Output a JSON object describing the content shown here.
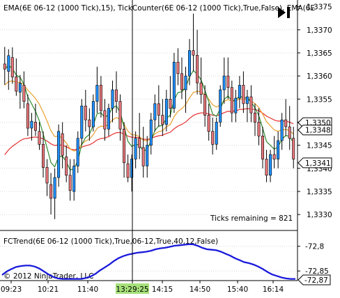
{
  "chart_data": [
    {
      "type": "candlestick",
      "panel": "price",
      "indicator_label": "EMA(6E 06-12 (1000 Tick),15), TickCounter(6E 06-12 (1000 Tick),True,False), EMA(6E",
      "y_ticks": [
        "1,3375",
        "1,3370",
        "1,3365",
        "1,3360",
        "1,3355",
        "1,3350",
        "1,3345",
        "1,3340",
        "1,3335",
        "1,3330"
      ],
      "ylim": [
        1.3327,
        1.3376
      ],
      "price_markers": [
        {
          "label": "1,3350",
          "value": 1.33499
        },
        {
          "label": "1,3348",
          "value": 1.33483
        },
        {
          "label": "1,3341",
          "value": 1.33412
        }
      ],
      "annotation": "Ticks remaining = 821",
      "colors": {
        "up": "#1e90ff",
        "down": "#e8767a",
        "ema_green": "#2e8b2e",
        "ema_orange": "#e8a030",
        "ema_red": "#e83030"
      },
      "candles": [
        [
          1.33626,
          1.33663,
          1.33581,
          1.33615
        ],
        [
          1.3361,
          1.33658,
          1.3357,
          1.33644
        ],
        [
          1.3364,
          1.33662,
          1.33583,
          1.33598
        ],
        [
          1.33598,
          1.33638,
          1.33557,
          1.33567
        ],
        [
          1.33565,
          1.33602,
          1.33529,
          1.33584
        ],
        [
          1.3358,
          1.3361,
          1.3353,
          1.33545
        ],
        [
          1.3354,
          1.3356,
          1.3347,
          1.33487
        ],
        [
          1.33487,
          1.3352,
          1.3346,
          1.33502
        ],
        [
          1.335,
          1.3354,
          1.3347,
          1.33482
        ],
        [
          1.3348,
          1.335,
          1.3344,
          1.33452
        ],
        [
          1.33452,
          1.3348,
          1.3338,
          1.33402
        ],
        [
          1.33402,
          1.3342,
          1.3334,
          1.33368
        ],
        [
          1.33365,
          1.3339,
          1.333,
          1.33335
        ],
        [
          1.33335,
          1.334,
          1.3329,
          1.3338
        ],
        [
          1.3338,
          1.33495,
          1.3336,
          1.3348
        ],
        [
          1.33475,
          1.335,
          1.334,
          1.33428
        ],
        [
          1.33425,
          1.3345,
          1.3337,
          1.33385
        ],
        [
          1.33385,
          1.3342,
          1.3333,
          1.33352
        ],
        [
          1.3335,
          1.3342,
          1.3333,
          1.33405
        ],
        [
          1.33405,
          1.3348,
          1.3339,
          1.33465
        ],
        [
          1.33465,
          1.3355,
          1.3345,
          1.33535
        ],
        [
          1.33535,
          1.3357,
          1.3348,
          1.33505
        ],
        [
          1.33505,
          1.3353,
          1.3346,
          1.3349
        ],
        [
          1.3349,
          1.3356,
          1.3348,
          1.33545
        ],
        [
          1.33545,
          1.3362,
          1.3352,
          1.3358
        ],
        [
          1.3358,
          1.336,
          1.3351,
          1.33525
        ],
        [
          1.33525,
          1.3355,
          1.3346,
          1.33485
        ],
        [
          1.33485,
          1.3354,
          1.3347,
          1.3353
        ],
        [
          1.3353,
          1.3359,
          1.335,
          1.3357
        ],
        [
          1.3357,
          1.3361,
          1.3352,
          1.33545
        ],
        [
          1.33545,
          1.3356,
          1.3346,
          1.33485
        ],
        [
          1.33485,
          1.335,
          1.3338,
          1.33412
        ],
        [
          1.3341,
          1.3343,
          1.3337,
          1.3338
        ],
        [
          1.3338,
          1.3343,
          1.3335,
          1.3342
        ],
        [
          1.3342,
          1.3348,
          1.334,
          1.33465
        ],
        [
          1.33465,
          1.3352,
          1.3342,
          1.33445
        ],
        [
          1.33445,
          1.3349,
          1.3338,
          1.33405
        ],
        [
          1.33405,
          1.3347,
          1.3338,
          1.3345
        ],
        [
          1.3345,
          1.3352,
          1.3343,
          1.33505
        ],
        [
          1.33505,
          1.3356,
          1.3348,
          1.3354
        ],
        [
          1.3354,
          1.3358,
          1.3349,
          1.33515
        ],
        [
          1.33515,
          1.3355,
          1.3347,
          1.33495
        ],
        [
          1.33495,
          1.3357,
          1.3348,
          1.3355
        ],
        [
          1.3355,
          1.336,
          1.3351,
          1.3353
        ],
        [
          1.3353,
          1.3365,
          1.3352,
          1.3363
        ],
        [
          1.3363,
          1.3366,
          1.3358,
          1.33605
        ],
        [
          1.33605,
          1.3364,
          1.3355,
          1.3357
        ],
        [
          1.3357,
          1.3362,
          1.3352,
          1.336
        ],
        [
          1.336,
          1.3368,
          1.3358,
          1.33655
        ],
        [
          1.33655,
          1.33735,
          1.3361,
          1.33645
        ],
        [
          1.33645,
          1.337,
          1.3356,
          1.33585
        ],
        [
          1.33585,
          1.3364,
          1.3354,
          1.3356
        ],
        [
          1.3356,
          1.3358,
          1.3349,
          1.33515
        ],
        [
          1.33515,
          1.3354,
          1.3346,
          1.3348
        ],
        [
          1.3348,
          1.3351,
          1.3343,
          1.33452
        ],
        [
          1.33452,
          1.3351,
          1.3344,
          1.335
        ],
        [
          1.335,
          1.3358,
          1.3349,
          1.3357
        ],
        [
          1.3357,
          1.3364,
          1.3354,
          1.336
        ],
        [
          1.336,
          1.3364,
          1.3355,
          1.33575
        ],
        [
          1.33575,
          1.3359,
          1.335,
          1.3352
        ],
        [
          1.3352,
          1.3357,
          1.335,
          1.33552
        ],
        [
          1.33552,
          1.336,
          1.3353,
          1.3358
        ],
        [
          1.3358,
          1.3361,
          1.3352,
          1.3354
        ],
        [
          1.3354,
          1.3357,
          1.335,
          1.33555
        ],
        [
          1.33555,
          1.3358,
          1.335,
          1.3352
        ],
        [
          1.3352,
          1.3354,
          1.3347,
          1.335
        ],
        [
          1.335,
          1.3353,
          1.3345,
          1.3347
        ],
        [
          1.3347,
          1.3349,
          1.334,
          1.3342
        ],
        [
          1.3342,
          1.3344,
          1.3337,
          1.33385
        ],
        [
          1.33385,
          1.3344,
          1.3337,
          1.3343
        ],
        [
          1.3343,
          1.3347,
          1.334,
          1.3342
        ],
        [
          1.3342,
          1.3348,
          1.334,
          1.3346
        ],
        [
          1.3346,
          1.3352,
          1.3344,
          1.33505
        ],
        [
          1.33505,
          1.3355,
          1.3347,
          1.3349
        ],
        [
          1.3349,
          1.33535,
          1.3344,
          1.33465
        ],
        [
          1.33465,
          1.3349,
          1.334,
          1.3342
        ]
      ]
    },
    {
      "type": "line",
      "panel": "indicator",
      "indicator_label": "FCTrend(6E 06-12 (1000 Tick),True,06-12,True,40,12,False)",
      "y_ticks": [
        "-72,8",
        "-72,85"
      ],
      "ylim": [
        -72.868,
        -72.775
      ],
      "marker": {
        "label": "-72,87",
        "value": -72.868
      },
      "copyright": "© 2012 NinjaTrader, LLC",
      "color": "#1a1adc",
      "values": [
        -72.858,
        -72.851,
        -72.846,
        -72.842,
        -72.84,
        -72.839,
        -72.839,
        -72.841,
        -72.845,
        -72.851,
        -72.857,
        -72.862,
        -72.865,
        -72.866,
        -72.866,
        -72.866,
        -72.866,
        -72.866,
        -72.864,
        -72.861,
        -72.856,
        -72.849,
        -72.843,
        -72.837,
        -72.83,
        -72.824,
        -72.82,
        -72.817,
        -72.815,
        -72.813,
        -72.812,
        -72.811,
        -72.809,
        -72.806,
        -72.804,
        -72.803,
        -72.801,
        -72.799,
        -72.798,
        -72.797,
        -72.796,
        -72.796,
        -72.799,
        -72.803,
        -72.806,
        -72.807,
        -72.808,
        -72.811,
        -72.815,
        -72.819,
        -72.824,
        -72.828,
        -72.832,
        -72.834,
        -72.837,
        -72.841,
        -72.846,
        -72.852,
        -72.857,
        -72.86,
        -72.863,
        -72.865,
        -72.866,
        -72.866
      ]
    }
  ],
  "x_axis": {
    "ticks": [
      "09:23",
      "10:21",
      "11:40",
      "13:29:25",
      "14:15",
      "14:50",
      "15:40",
      "16:14"
    ],
    "highlighted_tick": "13:29:25"
  }
}
